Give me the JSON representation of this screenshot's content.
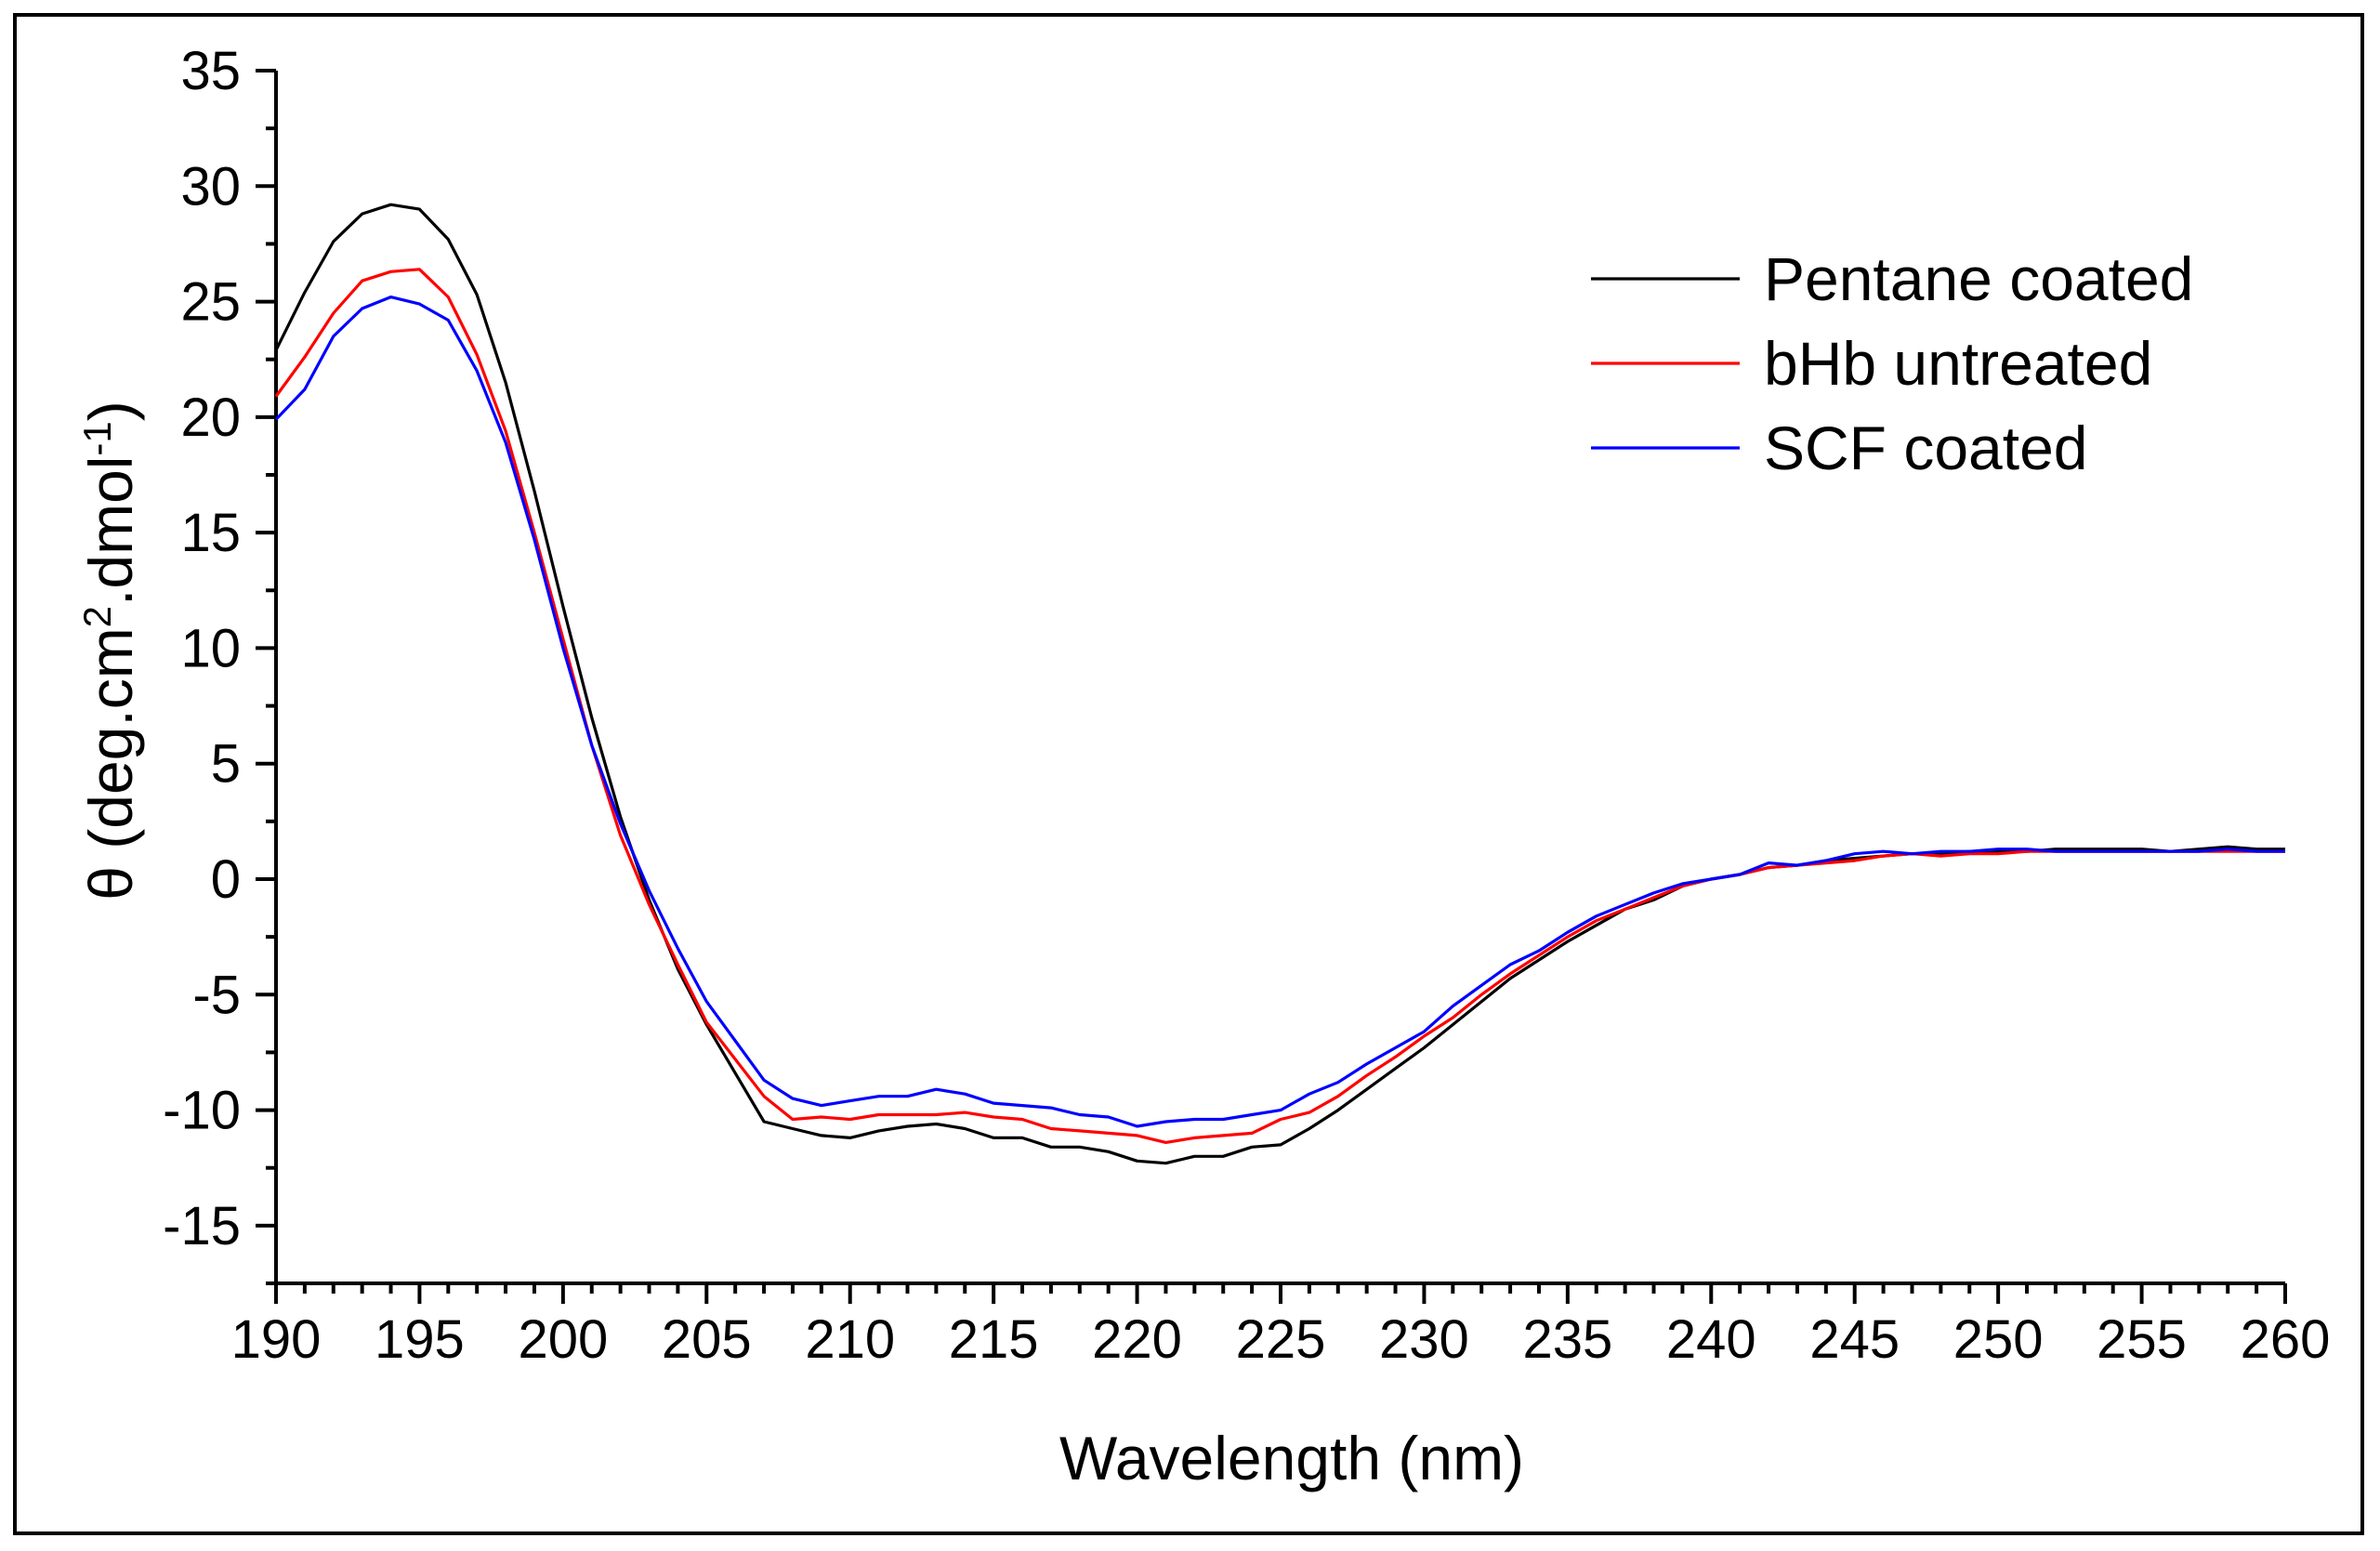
{
  "chart_data": {
    "type": "line",
    "title": "",
    "xlabel": "Wavelength (nm)",
    "ylabel": "θ (deg.cm².dmol⁻¹)",
    "ylabel_parts": {
      "main": "θ (deg.cm",
      "sup1": "2",
      "mid": ".dmol",
      "sup2": "-1",
      "end": ")"
    },
    "xlim": [
      190,
      260
    ],
    "ylim": [
      -17.5,
      35
    ],
    "xticks": [
      190,
      195,
      200,
      205,
      210,
      215,
      220,
      225,
      230,
      235,
      240,
      245,
      250,
      255,
      260
    ],
    "yticks": [
      -15,
      -10,
      -5,
      0,
      5,
      10,
      15,
      20,
      25,
      30,
      35
    ],
    "legend_position": "top-right",
    "grid": false,
    "x": [
      190,
      191,
      192,
      193,
      194,
      195,
      196,
      197,
      198,
      199,
      200,
      201,
      202,
      203,
      204,
      205,
      206,
      207,
      208,
      209,
      210,
      211,
      212,
      213,
      214,
      215,
      216,
      217,
      218,
      219,
      220,
      221,
      222,
      223,
      224,
      225,
      226,
      227,
      228,
      229,
      230,
      231,
      232,
      233,
      234,
      235,
      236,
      237,
      238,
      239,
      240,
      241,
      242,
      243,
      244,
      245,
      246,
      247,
      248,
      249,
      250,
      251,
      252,
      253,
      254,
      255,
      256,
      257,
      258,
      259,
      260
    ],
    "series": [
      {
        "name": "Pentane coated",
        "color": "#000000",
        "values": [
          22.9,
          25.4,
          27.6,
          28.8,
          29.2,
          29.0,
          27.7,
          25.3,
          21.5,
          16.8,
          11.8,
          7.0,
          2.7,
          -0.9,
          -3.9,
          -6.3,
          -8.4,
          -10.5,
          -10.8,
          -11.1,
          -11.2,
          -10.9,
          -10.7,
          -10.6,
          -10.8,
          -11.2,
          -11.2,
          -11.6,
          -11.6,
          -11.8,
          -12.2,
          -12.3,
          -12.0,
          -12.0,
          -11.6,
          -11.5,
          -10.8,
          -10.0,
          -9.1,
          -8.2,
          -7.3,
          -6.3,
          -5.3,
          -4.3,
          -3.5,
          -2.7,
          -2.0,
          -1.3,
          -0.9,
          -0.3,
          0.0,
          0.2,
          0.5,
          0.6,
          0.8,
          0.9,
          1.0,
          1.1,
          1.1,
          1.2,
          1.2,
          1.2,
          1.3,
          1.3,
          1.3,
          1.3,
          1.2,
          1.3,
          1.4,
          1.3,
          1.3
        ]
      },
      {
        "name": "bHb untreated",
        "color": "#ff0000",
        "values": [
          20.9,
          22.6,
          24.5,
          25.9,
          26.3,
          26.4,
          25.2,
          22.7,
          19.4,
          15.0,
          10.4,
          5.8,
          1.9,
          -1.1,
          -3.7,
          -6.2,
          -7.8,
          -9.4,
          -10.4,
          -10.3,
          -10.4,
          -10.2,
          -10.2,
          -10.2,
          -10.1,
          -10.3,
          -10.4,
          -10.8,
          -10.9,
          -11.0,
          -11.1,
          -11.4,
          -11.2,
          -11.1,
          -11.0,
          -10.4,
          -10.1,
          -9.4,
          -8.5,
          -7.7,
          -6.8,
          -6.0,
          -5.0,
          -4.1,
          -3.3,
          -2.5,
          -1.8,
          -1.3,
          -0.8,
          -0.3,
          0.0,
          0.2,
          0.5,
          0.6,
          0.7,
          0.8,
          1.0,
          1.1,
          1.0,
          1.1,
          1.1,
          1.2,
          1.2,
          1.2,
          1.2,
          1.2,
          1.2,
          1.2,
          1.2,
          1.2,
          1.2
        ]
      },
      {
        "name": "SCF coated",
        "color": "#0000ff",
        "values": [
          19.9,
          21.2,
          23.5,
          24.7,
          25.2,
          24.9,
          24.2,
          22.0,
          18.9,
          14.7,
          10.0,
          5.8,
          2.4,
          -0.5,
          -3.0,
          -5.3,
          -7.0,
          -8.7,
          -9.5,
          -9.8,
          -9.6,
          -9.4,
          -9.4,
          -9.1,
          -9.3,
          -9.7,
          -9.8,
          -9.9,
          -10.2,
          -10.3,
          -10.7,
          -10.5,
          -10.4,
          -10.4,
          -10.2,
          -10.0,
          -9.3,
          -8.8,
          -8.0,
          -7.3,
          -6.6,
          -5.5,
          -4.6,
          -3.7,
          -3.1,
          -2.3,
          -1.6,
          -1.1,
          -0.6,
          -0.2,
          0.0,
          0.2,
          0.7,
          0.6,
          0.8,
          1.1,
          1.2,
          1.1,
          1.2,
          1.2,
          1.3,
          1.3,
          1.2,
          1.2,
          1.2,
          1.2,
          1.2,
          1.2,
          1.3,
          1.2,
          1.2
        ]
      }
    ]
  }
}
